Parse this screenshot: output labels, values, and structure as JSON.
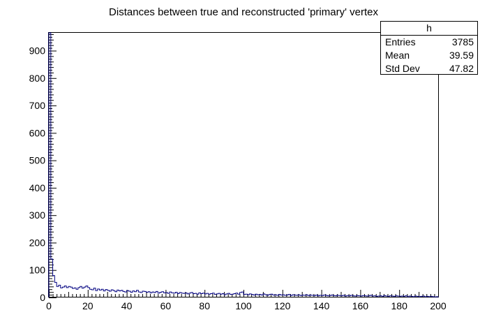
{
  "chart_data": {
    "type": "bar",
    "title": "Distances between true and reconstructed 'primary' vertex",
    "xlabel": "",
    "ylabel": "",
    "xlim": [
      0,
      200
    ],
    "ylim": [
      0,
      965
    ],
    "bin_width": 1,
    "x_ticks": [
      "0",
      "20",
      "40",
      "60",
      "80",
      "100",
      "120",
      "140",
      "160",
      "180",
      "200"
    ],
    "y_ticks": [
      "0",
      "100",
      "200",
      "300",
      "400",
      "500",
      "600",
      "700",
      "800",
      "900"
    ],
    "grid": false,
    "legend": "none",
    "line_color": "#000080",
    "values": [
      965,
      140,
      80,
      55,
      40,
      45,
      35,
      38,
      42,
      36,
      40,
      38,
      33,
      35,
      30,
      36,
      40,
      34,
      38,
      42,
      36,
      30,
      28,
      34,
      25,
      31,
      27,
      30,
      24,
      29,
      26,
      23,
      28,
      25,
      21,
      27,
      24,
      26,
      22,
      20,
      25,
      23,
      19,
      24,
      21,
      26,
      20,
      18,
      23,
      22,
      19,
      21,
      17,
      20,
      18,
      22,
      16,
      19,
      21,
      17,
      18,
      15,
      20,
      17,
      16,
      19,
      14,
      18,
      16,
      15,
      17,
      13,
      16,
      18,
      14,
      15,
      12,
      17,
      14,
      16,
      13,
      15,
      12,
      14,
      16,
      11,
      13,
      15,
      12,
      14,
      10,
      13,
      15,
      11,
      12,
      14,
      16,
      12,
      18,
      20,
      11,
      12,
      10,
      13,
      11,
      9,
      12,
      10,
      11,
      9,
      13,
      10,
      8,
      11,
      12,
      9,
      10,
      8,
      11,
      9,
      10,
      8,
      9,
      11,
      7,
      10,
      9,
      8,
      10,
      7,
      9,
      8,
      10,
      7,
      9,
      8,
      7,
      9,
      6,
      8,
      7,
      9,
      8,
      6,
      7,
      9,
      7,
      6,
      8,
      7,
      6,
      8,
      5,
      7,
      6,
      8,
      6,
      5,
      7,
      6,
      5,
      7,
      6,
      5,
      6,
      8,
      5,
      6,
      4,
      5,
      6,
      4,
      7,
      5,
      4,
      6,
      5,
      4,
      6,
      5,
      4,
      5,
      4,
      6,
      3,
      5,
      4,
      3,
      5,
      4,
      3,
      4,
      5,
      3,
      4,
      3,
      4,
      3,
      2,
      3
    ]
  },
  "stats": {
    "title": "h",
    "entries_label": "Entries",
    "entries_value": "3785",
    "mean_label": "Mean",
    "mean_value": "39.59",
    "stddev_label": "Std Dev",
    "stddev_value": "47.82"
  }
}
